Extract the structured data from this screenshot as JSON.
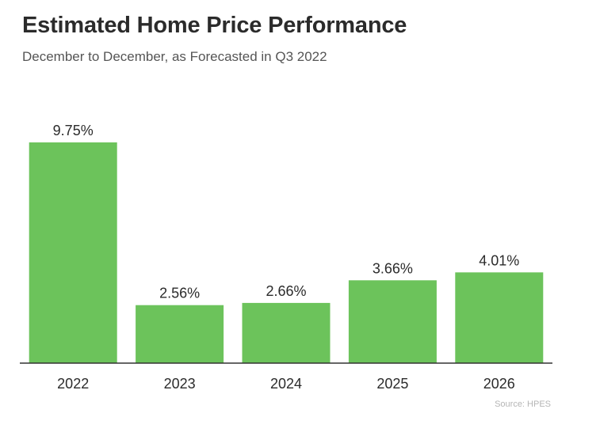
{
  "chart_data": {
    "type": "bar",
    "title": "Estimated Home Price Performance",
    "subtitle": "December to December, as Forecasted in Q3 2022",
    "categories": [
      "2022",
      "2023",
      "2024",
      "2025",
      "2026"
    ],
    "values": [
      9.75,
      2.56,
      2.66,
      3.66,
      4.01
    ],
    "value_labels": [
      "9.75%",
      "2.56%",
      "2.66%",
      "3.66%",
      "4.01%"
    ],
    "xlabel": "",
    "ylabel": "",
    "ylim": [
      0,
      10
    ],
    "grid": false,
    "legend": "none",
    "bar_color": "#6cc35b",
    "source": "Source: HPES"
  }
}
